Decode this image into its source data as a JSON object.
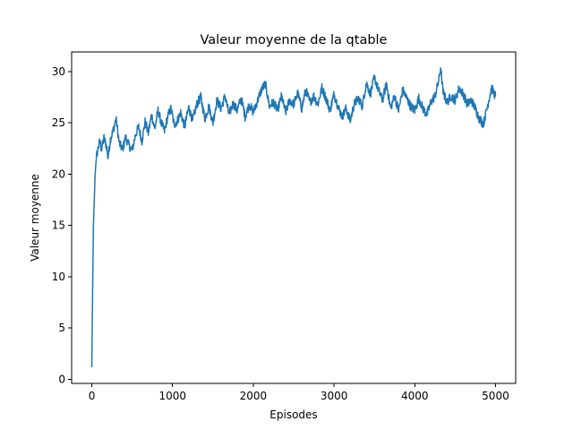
{
  "chart_data": {
    "type": "line",
    "title": "Valeur moyenne de la qtable",
    "xlabel": "Episodes",
    "ylabel": "Valeur moyenne",
    "xlim": [
      -250,
      5250
    ],
    "ylim": [
      -0.4,
      31.9
    ],
    "xticks": [
      0,
      1000,
      2000,
      3000,
      4000,
      5000
    ],
    "yticks": [
      0,
      5,
      10,
      15,
      20,
      25,
      30
    ],
    "grid": false,
    "legend": "none",
    "series": [
      {
        "color": "#1f77b4",
        "x": [
          0,
          10,
          20,
          30,
          40,
          50,
          60,
          80,
          100,
          120,
          150,
          180,
          200,
          230,
          260,
          300,
          340,
          380,
          420,
          460,
          500,
          540,
          580,
          620,
          660,
          700,
          740,
          780,
          820,
          860,
          900,
          940,
          980,
          1020,
          1060,
          1100,
          1150,
          1200,
          1250,
          1300,
          1350,
          1400,
          1450,
          1500,
          1550,
          1600,
          1650,
          1700,
          1750,
          1800,
          1850,
          1900,
          1950,
          2000,
          2050,
          2100,
          2150,
          2200,
          2250,
          2300,
          2350,
          2400,
          2450,
          2500,
          2550,
          2600,
          2650,
          2700,
          2750,
          2800,
          2850,
          2900,
          2950,
          3000,
          3050,
          3100,
          3150,
          3200,
          3250,
          3300,
          3350,
          3400,
          3450,
          3500,
          3550,
          3600,
          3650,
          3700,
          3750,
          3800,
          3850,
          3900,
          3950,
          4000,
          4050,
          4100,
          4150,
          4200,
          4250,
          4300,
          4320,
          4350,
          4400,
          4450,
          4500,
          4550,
          4600,
          4650,
          4700,
          4750,
          4800,
          4850,
          4900,
          4950,
          5000
        ],
        "y": [
          1.2,
          8.5,
          15.0,
          17.2,
          19.8,
          21.0,
          21.8,
          22.6,
          23.2,
          22.4,
          23.5,
          22.8,
          21.6,
          23.4,
          24.1,
          25.4,
          23.0,
          22.4,
          23.6,
          22.8,
          22.3,
          23.8,
          24.6,
          23.2,
          25.1,
          24.0,
          25.8,
          24.4,
          26.2,
          25.0,
          24.2,
          25.6,
          26.4,
          24.8,
          25.2,
          26.0,
          24.6,
          26.5,
          25.2,
          26.8,
          27.5,
          25.4,
          26.6,
          25.0,
          27.2,
          26.4,
          27.6,
          25.8,
          26.9,
          26.2,
          27.4,
          25.6,
          26.8,
          26.0,
          27.1,
          28.2,
          28.8,
          26.6,
          27.0,
          26.2,
          27.6,
          26.0,
          27.2,
          26.8,
          27.9,
          26.4,
          28.2,
          27.0,
          27.6,
          26.8,
          28.4,
          27.4,
          26.2,
          27.8,
          26.6,
          25.6,
          26.4,
          25.2,
          26.8,
          27.4,
          26.6,
          28.9,
          27.8,
          29.4,
          28.2,
          27.2,
          28.8,
          26.4,
          27.6,
          26.2,
          28.2,
          27.4,
          26.6,
          26.2,
          27.4,
          26.4,
          25.8,
          27.0,
          27.6,
          29.2,
          30.4,
          28.0,
          27.0,
          27.6,
          27.2,
          28.4,
          27.8,
          26.8,
          27.2,
          26.4,
          25.4,
          24.9,
          26.6,
          28.4,
          27.6
        ]
      }
    ]
  }
}
